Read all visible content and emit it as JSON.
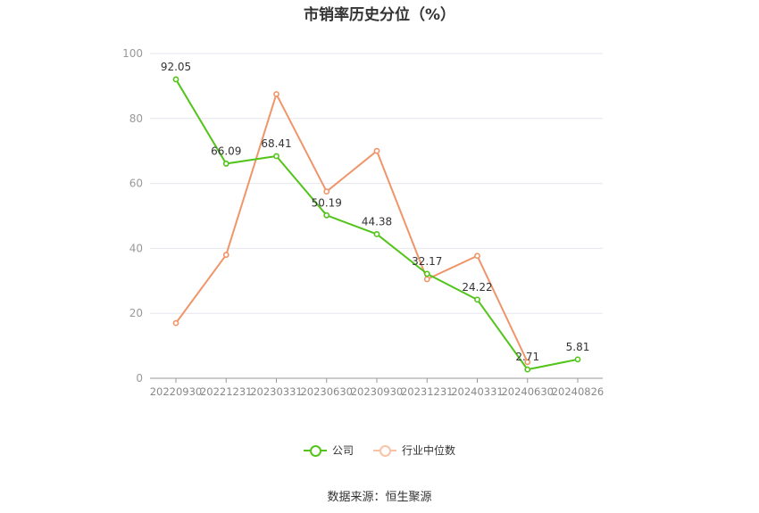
{
  "chart_data": {
    "type": "line",
    "title": "市销率历史分位（%）",
    "categories": [
      "20220930",
      "20221231",
      "20230331",
      "20230630",
      "20230930",
      "20231231",
      "20240331",
      "20240630",
      "20240826"
    ],
    "series": [
      {
        "name": "公司",
        "color": "#52c41a",
        "values": [
          92.05,
          66.09,
          68.41,
          50.19,
          44.38,
          32.17,
          24.22,
          2.71,
          5.81
        ],
        "labels": [
          "92.05",
          "66.09",
          "68.41",
          "50.19",
          "44.38",
          "32.17",
          "24.22",
          "2.71",
          "5.81"
        ]
      },
      {
        "name": "行业中位数",
        "color": "#f0956a",
        "values": [
          17,
          38,
          87.5,
          57.5,
          70,
          30.5,
          37.7,
          5,
          null
        ]
      }
    ],
    "ylim": [
      0,
      100
    ],
    "yticks": [
      0,
      20,
      40,
      60,
      80,
      100
    ],
    "grid": true,
    "legend_position": "bottom-center",
    "source": "数据来源：恒生聚源"
  }
}
